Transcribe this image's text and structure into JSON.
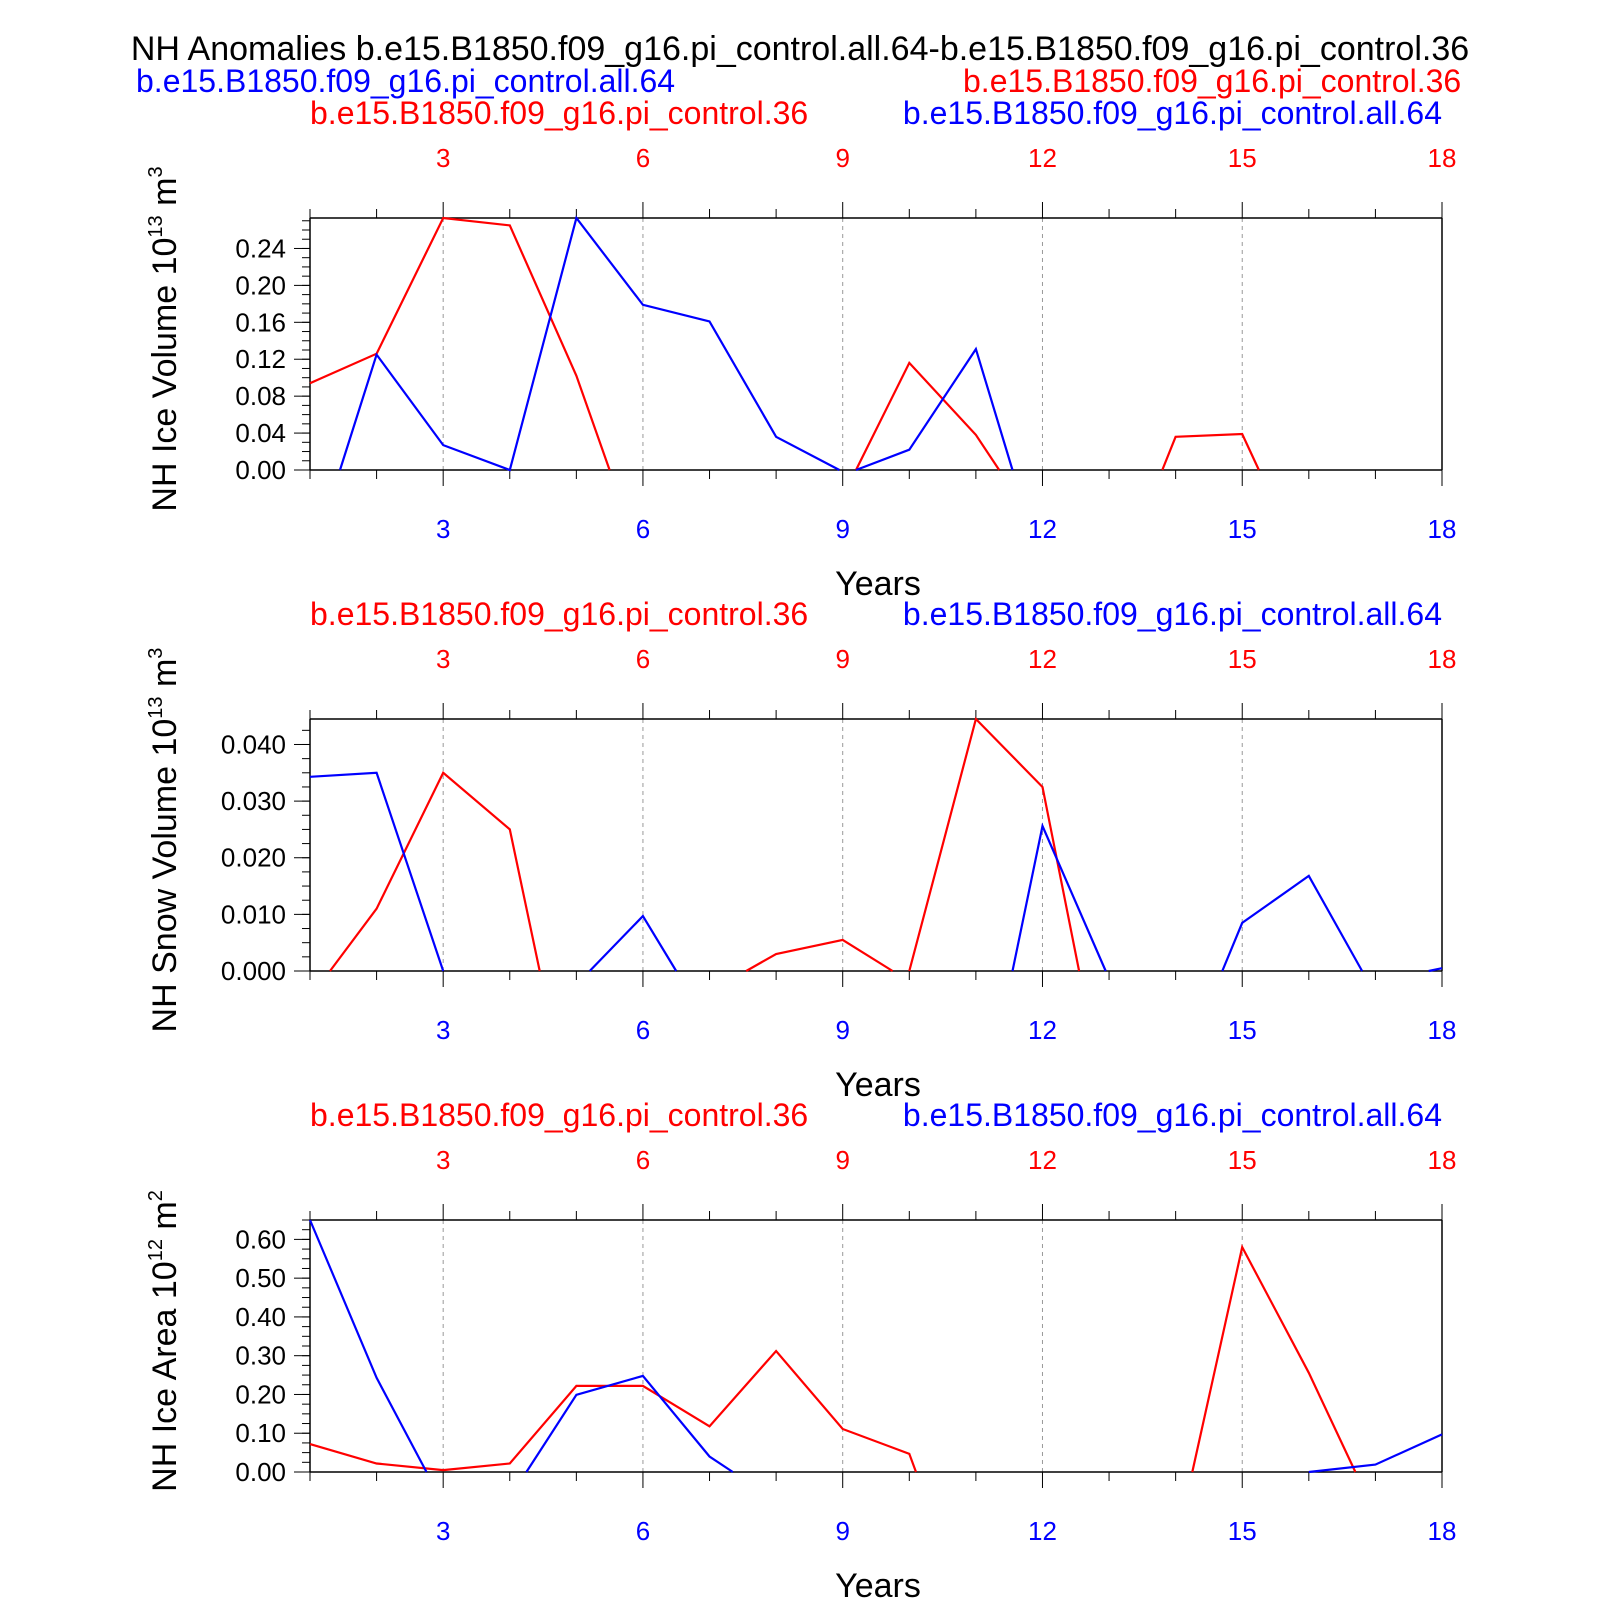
{
  "main_title": "NH Anomalies b.e15.B1850.f09_g16.pi_control.all.64-b.e15.B1850.f09_g16.pi_control.36",
  "header_left": "b.e15.B1850.f09_g16.pi_control.all.64",
  "header_right": "b.e15.B1850.f09_g16.pi_control.36",
  "colors": {
    "case_a": "#ff0000",
    "case_b": "#0000ff",
    "axis": "#000000",
    "grid": "#999999"
  },
  "chart_data": [
    {
      "type": "line",
      "title_left": "b.e15.B1850.f09_g16.pi_control.36",
      "title_right": "b.e15.B1850.f09_g16.pi_control.all.64",
      "ylabel_base": "NH Ice Volume 10",
      "ylabel_exp": "13",
      "ylabel_unit": "m",
      "ylabel_unit_exp": "3",
      "xlabel": "Years",
      "xlim": [
        1,
        18
      ],
      "ylim": [
        0,
        0.273
      ],
      "yticks": [
        "0.00",
        "0.04",
        "0.08",
        "0.12",
        "0.16",
        "0.20",
        "0.24"
      ],
      "xticks": [
        "3",
        "6",
        "9",
        "12",
        "15",
        "18"
      ],
      "series": [
        {
          "name": "b.e15.B1850.f09_g16.pi_control.36",
          "color": "#ff0000",
          "x": [
            1,
            2,
            3,
            4,
            5,
            5.5,
            9.2,
            10,
            11,
            11.35,
            13.8,
            14,
            15,
            15.25
          ],
          "y": [
            0.094,
            0.126,
            0.273,
            0.265,
            0.102,
            0,
            0,
            0.116,
            0.038,
            0,
            0,
            0.036,
            0.039,
            0
          ]
        },
        {
          "name": "b.e15.B1850.f09_g16.pi_control.all.64",
          "color": "#0000ff",
          "x": [
            1.45,
            2,
            3,
            4,
            5,
            6,
            7,
            8,
            8.95,
            9.2,
            10,
            11,
            11.55
          ],
          "y": [
            0,
            0.125,
            0.027,
            0,
            0.273,
            0.179,
            0.161,
            0.036,
            0,
            0,
            0.022,
            0.131,
            0
          ]
        }
      ]
    },
    {
      "type": "line",
      "title_left": "b.e15.B1850.f09_g16.pi_control.36",
      "title_right": "b.e15.B1850.f09_g16.pi_control.all.64",
      "ylabel_base": "NH Snow Volume 10",
      "ylabel_exp": "13",
      "ylabel_unit": "m",
      "ylabel_unit_exp": "3",
      "xlabel": "Years",
      "xlim": [
        1,
        18
      ],
      "ylim": [
        0,
        0.0445
      ],
      "yticks": [
        "0.000",
        "0.010",
        "0.020",
        "0.030",
        "0.040"
      ],
      "xticks": [
        "3",
        "6",
        "9",
        "12",
        "15",
        "18"
      ],
      "series": [
        {
          "name": "b.e15.B1850.f09_g16.pi_control.36",
          "color": "#ff0000",
          "x": [
            1.3,
            2,
            3,
            4,
            4.45,
            7.55,
            8,
            9,
            9.75,
            10,
            11,
            12,
            12.55
          ],
          "y": [
            0,
            0.011,
            0.035,
            0.025,
            0,
            0,
            0.003,
            0.0055,
            0,
            0,
            0.0445,
            0.0325,
            0
          ]
        },
        {
          "name": "b.e15.B1850.f09_g16.pi_control.all.64",
          "color": "#0000ff",
          "x": [
            1,
            2,
            3,
            5.2,
            6,
            6.5,
            11.55,
            12,
            12.95,
            14.7,
            15,
            16,
            16.8,
            17.8,
            18
          ],
          "y": [
            0.0343,
            0.035,
            0,
            0,
            0.0097,
            0,
            0,
            0.0256,
            0,
            0,
            0.0085,
            0.0168,
            0,
            0,
            0.0005
          ]
        }
      ]
    },
    {
      "type": "line",
      "title_left": "b.e15.B1850.f09_g16.pi_control.36",
      "title_right": "b.e15.B1850.f09_g16.pi_control.all.64",
      "ylabel_base": "NH Ice Area 10",
      "ylabel_exp": "12",
      "ylabel_unit": "m",
      "ylabel_unit_exp": "2",
      "xlabel": "Years",
      "xlim": [
        1,
        18
      ],
      "ylim": [
        0,
        0.65
      ],
      "yticks": [
        "0.00",
        "0.10",
        "0.20",
        "0.30",
        "0.40",
        "0.50",
        "0.60"
      ],
      "xticks": [
        "3",
        "6",
        "9",
        "12",
        "15",
        "18"
      ],
      "series": [
        {
          "name": "b.e15.B1850.f09_g16.pi_control.36",
          "color": "#ff0000",
          "x": [
            1,
            2,
            3,
            4,
            5,
            6,
            7,
            8,
            9,
            10,
            10.1,
            14.25,
            15,
            16,
            16.7
          ],
          "y": [
            0.072,
            0.022,
            0.005,
            0.022,
            0.222,
            0.222,
            0.118,
            0.312,
            0.111,
            0.047,
            0,
            0,
            0.58,
            0.256,
            0
          ]
        },
        {
          "name": "b.e15.B1850.f09_g16.pi_control.all.64",
          "color": "#0000ff",
          "x": [
            1,
            2,
            2.75,
            4.25,
            5,
            6,
            7,
            7.35,
            16,
            17,
            18
          ],
          "y": [
            0.65,
            0.243,
            0,
            0,
            0.199,
            0.248,
            0.04,
            0,
            0,
            0.019,
            0.097
          ]
        }
      ]
    }
  ]
}
